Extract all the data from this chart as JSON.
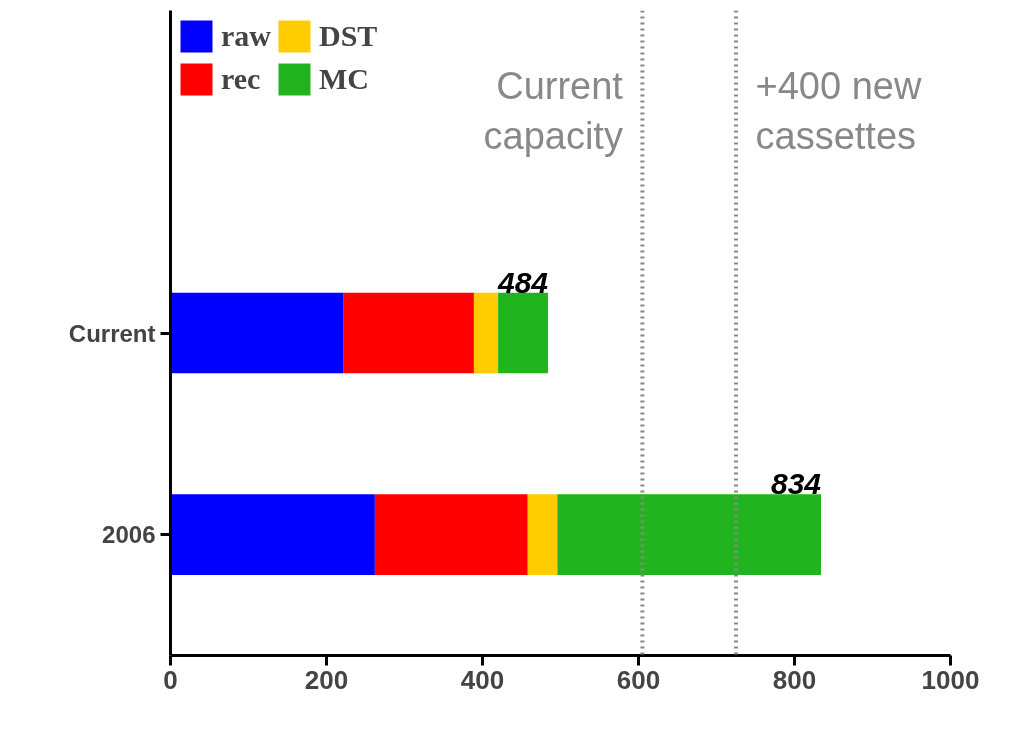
{
  "chart_data": {
    "type": "bar",
    "orientation": "horizontal",
    "stacked": true,
    "categories": [
      "Current",
      "2006"
    ],
    "series": [
      {
        "name": "raw",
        "color": "#0000ff",
        "values": [
          222,
          262
        ]
      },
      {
        "name": "rec",
        "color": "#ff0000",
        "values": [
          167,
          196
        ]
      },
      {
        "name": "DST",
        "color": "#ffcc00",
        "values": [
          31,
          38
        ]
      },
      {
        "name": "MC",
        "color": "#22b41e",
        "values": [
          64,
          338
        ]
      }
    ],
    "xlim": [
      0,
      1000
    ],
    "xticks": [
      0,
      200,
      400,
      600,
      800,
      1000
    ],
    "totals": [
      "484",
      "834"
    ],
    "ref_lines": [
      {
        "axis": "x",
        "value": 605,
        "label": "Current capacity",
        "color": "#888888",
        "line_style": "dotted"
      },
      {
        "axis": "x",
        "value": 725,
        "label": "+400 new cassettes",
        "color": "#888888",
        "line_style": "dotted"
      }
    ],
    "grid": false,
    "legend": "top left"
  }
}
